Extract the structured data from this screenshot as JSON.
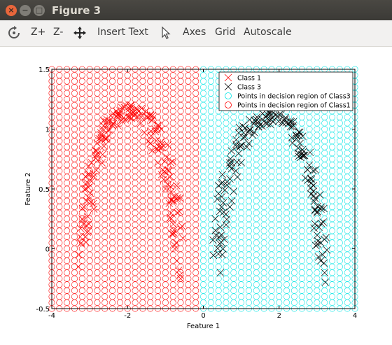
{
  "window": {
    "title": "Figure 3",
    "close_glyph": "×",
    "min_glyph": "−",
    "max_glyph": "□"
  },
  "toolbar": {
    "rotate_icon": "rotate-icon",
    "zoom_in_label": "Z+",
    "zoom_out_label": "Z-",
    "pan_icon": "pan-icon",
    "insert_text_label": "Insert Text",
    "select_icon": "pointer-icon",
    "axes_label": "Axes",
    "grid_label": "Grid",
    "autoscale_label": "Autoscale"
  },
  "chart_data": {
    "type": "scatter",
    "xlabel": "Feature 1",
    "ylabel": "Feature 2",
    "xlim": [
      -4,
      4
    ],
    "ylim": [
      -0.5,
      1.5
    ],
    "xticks": [
      "-4",
      "-2",
      "0",
      "2",
      "4"
    ],
    "yticks": [
      "-0.5",
      "0",
      "0.5",
      "1",
      "1.5"
    ],
    "legend_position": "top-right",
    "grid": false,
    "decision_boundary_x": 0,
    "decision_grid": {
      "x_start": -4,
      "x_end": 4,
      "x_step": 0.2,
      "y_start": -0.5,
      "y_end": 1.5,
      "y_step": 0.05
    },
    "series": [
      {
        "name": "Class 1",
        "marker": "x",
        "color": "#ff0000",
        "arc": {
          "center_x": -1.9,
          "center_y": 0.05,
          "radius_x": 1.2,
          "radius_y": 1.1
        },
        "x": [
          -3.3,
          -3.28,
          -3.25,
          -3.2,
          -3.15,
          -3.1,
          -3.0,
          -2.95,
          -2.85,
          -2.75,
          -2.65,
          -2.55,
          -2.4,
          -2.3,
          -2.15,
          -2.05,
          -1.95,
          -1.85,
          -1.75,
          -1.65,
          -1.55,
          -1.45,
          -1.35,
          -1.2,
          -1.1,
          -1.0,
          -0.9,
          -0.85,
          -0.8,
          -0.75,
          -0.7,
          -0.65,
          -0.62,
          -0.6,
          -3.22,
          -3.05,
          -2.7,
          -2.25,
          -1.8,
          -1.4,
          -1.05,
          -0.72
        ],
        "y": [
          -0.15,
          -0.05,
          0.1,
          0.25,
          0.35,
          0.5,
          0.62,
          0.72,
          0.82,
          0.92,
          1.0,
          1.06,
          1.1,
          1.15,
          1.18,
          1.2,
          1.17,
          1.14,
          1.1,
          1.05,
          0.97,
          0.9,
          0.82,
          0.72,
          0.62,
          0.5,
          0.38,
          0.25,
          0.12,
          0.0,
          -0.1,
          -0.18,
          -0.22,
          -0.25,
          0.05,
          0.55,
          0.95,
          1.12,
          1.12,
          0.88,
          0.58,
          0.05
        ]
      },
      {
        "name": "Class 3",
        "marker": "x",
        "color": "#000000",
        "arc": {
          "center_x": 1.75,
          "center_y": -0.05,
          "radius_x": 1.35,
          "radius_y": 1.15
        },
        "x": [
          0.45,
          0.5,
          0.55,
          0.6,
          0.7,
          0.8,
          0.9,
          1.0,
          1.15,
          1.3,
          1.45,
          1.55,
          1.7,
          1.85,
          2.0,
          2.15,
          2.3,
          2.45,
          2.55,
          2.65,
          2.75,
          2.85,
          2.95,
          3.0,
          3.05,
          3.1,
          3.15,
          3.18,
          3.2,
          3.22,
          0.52,
          0.75,
          1.2,
          1.65,
          2.1,
          2.5,
          2.9,
          3.1
        ],
        "y": [
          -0.2,
          -0.05,
          0.08,
          0.2,
          0.35,
          0.48,
          0.6,
          0.72,
          0.85,
          0.95,
          1.02,
          1.08,
          1.12,
          1.14,
          1.12,
          1.08,
          1.02,
          0.95,
          0.88,
          0.78,
          0.66,
          0.55,
          0.42,
          0.3,
          0.18,
          0.05,
          -0.05,
          -0.12,
          -0.2,
          -0.28,
          0.0,
          0.4,
          0.88,
          1.1,
          1.05,
          0.8,
          0.48,
          -0.1
        ]
      },
      {
        "name": "Points in decision region of Class3",
        "marker": "o",
        "color": "#00e5e5",
        "region": "x > 0"
      },
      {
        "name": "Points in decision region of Class1",
        "marker": "o",
        "color": "#ff0000",
        "region": "x < 0"
      }
    ]
  }
}
